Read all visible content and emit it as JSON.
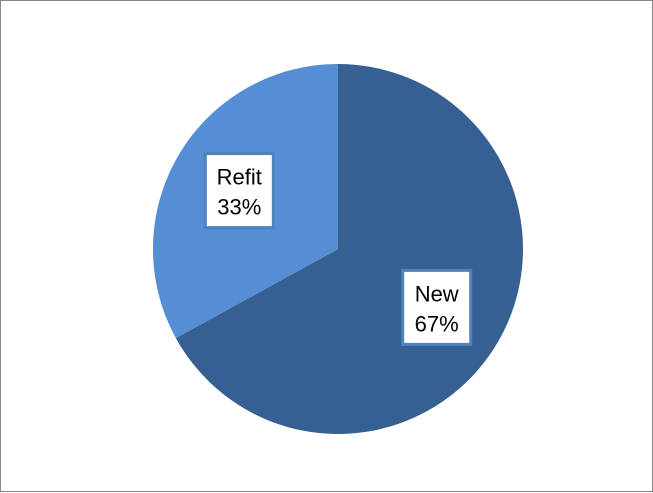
{
  "chart_data": {
    "type": "pie",
    "title": "",
    "slices": [
      {
        "label": "New",
        "value": 67,
        "value_text": "67%",
        "color": "#376092",
        "label_border": "#4F81BD"
      },
      {
        "label": "Refit",
        "value": 33,
        "value_text": "33%",
        "color": "#558ED5",
        "label_border": "#4F81BD"
      }
    ],
    "start_angle_deg": 0,
    "direction": "clockwise",
    "legend": "none",
    "data_labels": "inside"
  }
}
